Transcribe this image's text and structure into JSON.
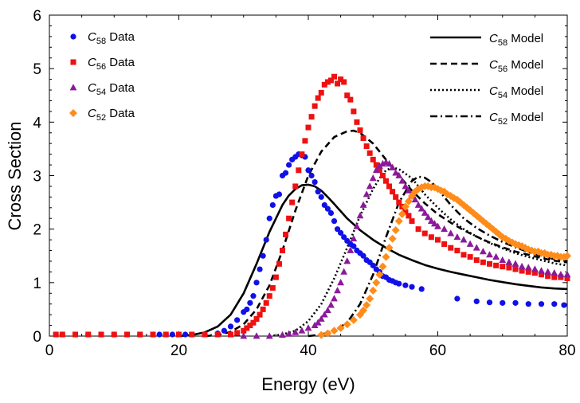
{
  "chart_data": {
    "type": "scatter",
    "title": "",
    "xlabel": "Energy (eV)",
    "ylabel": "Cross Section",
    "xlim": [
      0,
      80
    ],
    "ylim": [
      0,
      6
    ],
    "xticks": [
      0,
      20,
      40,
      60,
      80
    ],
    "yticks": [
      0,
      1,
      2,
      3,
      4,
      5,
      6
    ],
    "xtick_labels": [
      "0",
      "20",
      "40",
      "60",
      "80"
    ],
    "ytick_labels": [
      "0",
      "1",
      "2",
      "3",
      "4",
      "5",
      "6"
    ],
    "frame": true,
    "grid": false,
    "legend_data_position": "top-left",
    "legend_model_position": "top-right",
    "data_series": [
      {
        "name": "C58 Data",
        "label_base": "C",
        "label_sub": "58",
        "label_suffix": " Data",
        "marker": "circle",
        "color": "#1010e8",
        "x": [
          1,
          2,
          4,
          6,
          8,
          10,
          12,
          14,
          16,
          17,
          18,
          19,
          20,
          21,
          22,
          24,
          26,
          27,
          28,
          29,
          30,
          30.5,
          31,
          31.5,
          32,
          32.5,
          33,
          33.5,
          34,
          34.5,
          35,
          35.5,
          36,
          36.5,
          37,
          37.5,
          38,
          38.5,
          39,
          39.5,
          40,
          40.5,
          41,
          41.5,
          42,
          42.5,
          43,
          43.5,
          44,
          44.5,
          45,
          45.5,
          46,
          46.5,
          47,
          47.5,
          48,
          48.5,
          49,
          49.5,
          50,
          50.5,
          51,
          51.5,
          52,
          52.5,
          53,
          53.5,
          54,
          55,
          56,
          57.5,
          63,
          66,
          68,
          70,
          72,
          74,
          76,
          78,
          79.5
        ],
        "y": [
          0.03,
          0.03,
          0.03,
          0.03,
          0.03,
          0.03,
          0.03,
          0.03,
          0.03,
          0.03,
          0.03,
          0.03,
          0.03,
          0.03,
          0.03,
          0.03,
          0.05,
          0.1,
          0.18,
          0.3,
          0.45,
          0.5,
          0.62,
          0.75,
          1.0,
          1.25,
          1.5,
          1.8,
          2.2,
          2.45,
          2.62,
          2.65,
          3.0,
          3.05,
          3.2,
          3.3,
          3.35,
          3.4,
          3.38,
          3.35,
          3.1,
          3.0,
          2.88,
          2.7,
          2.6,
          2.45,
          2.38,
          2.3,
          2.15,
          2.0,
          1.93,
          1.85,
          1.78,
          1.72,
          1.68,
          1.6,
          1.55,
          1.5,
          1.42,
          1.38,
          1.32,
          1.25,
          1.2,
          1.12,
          1.1,
          1.05,
          1.03,
          1.0,
          0.98,
          0.95,
          0.92,
          0.88,
          0.7,
          0.65,
          0.63,
          0.62,
          0.62,
          0.6,
          0.6,
          0.6,
          0.58
        ]
      },
      {
        "name": "C56 Data",
        "label_base": "C",
        "label_sub": "56",
        "label_suffix": " Data",
        "marker": "square",
        "color": "#ee1111",
        "x": [
          1,
          2,
          4,
          6,
          8,
          10,
          12,
          14,
          16,
          18,
          20,
          22,
          24,
          26,
          28,
          29,
          30,
          30.5,
          31,
          31.5,
          32,
          32.5,
          33,
          33.5,
          34,
          34.5,
          35,
          35.5,
          36,
          36.5,
          37,
          37.5,
          38,
          38.5,
          39,
          39.5,
          40,
          40.5,
          41,
          41.5,
          42,
          42.5,
          43,
          43.5,
          44,
          44.5,
          45,
          45.5,
          46,
          46.5,
          47,
          47.5,
          48,
          48.5,
          49,
          49.5,
          50,
          50.5,
          51,
          51.5,
          52,
          52.5,
          53,
          53.5,
          54,
          54.5,
          55,
          55.5,
          56,
          57,
          58,
          59,
          60,
          61,
          62,
          63,
          64,
          65,
          66,
          67,
          68,
          69,
          70,
          71,
          72,
          73,
          74,
          75,
          76,
          77,
          78,
          79,
          80
        ],
        "y": [
          0.03,
          0.03,
          0.03,
          0.03,
          0.03,
          0.03,
          0.03,
          0.03,
          0.03,
          0.03,
          0.03,
          0.03,
          0.03,
          0.03,
          0.03,
          0.06,
          0.1,
          0.15,
          0.2,
          0.25,
          0.32,
          0.4,
          0.5,
          0.62,
          0.75,
          0.9,
          1.1,
          1.35,
          1.6,
          1.9,
          2.2,
          2.5,
          2.8,
          3.1,
          3.4,
          3.65,
          3.9,
          4.1,
          4.3,
          4.45,
          4.55,
          4.7,
          4.75,
          4.78,
          4.85,
          4.72,
          4.8,
          4.75,
          4.5,
          4.42,
          4.2,
          4.0,
          3.85,
          3.7,
          3.55,
          3.42,
          3.3,
          3.2,
          3.1,
          3.0,
          2.9,
          2.8,
          2.7,
          2.6,
          2.5,
          2.42,
          2.32,
          2.25,
          2.15,
          2.0,
          1.92,
          1.85,
          1.8,
          1.72,
          1.65,
          1.6,
          1.52,
          1.48,
          1.42,
          1.38,
          1.35,
          1.32,
          1.3,
          1.28,
          1.25,
          1.22,
          1.2,
          1.18,
          1.15,
          1.12,
          1.1,
          1.1,
          1.08
        ]
      },
      {
        "name": "C54 Data",
        "label_base": "C",
        "label_sub": "54",
        "label_suffix": " Data",
        "marker": "triangle",
        "color": "#8b1a99",
        "x": [
          30,
          32,
          34,
          36,
          37,
          38,
          39,
          40,
          41,
          41.5,
          42,
          42.5,
          43,
          43.5,
          44,
          44.5,
          45,
          45.5,
          46,
          46.5,
          47,
          47.5,
          48,
          48.5,
          49,
          49.5,
          50,
          50.5,
          51,
          51.5,
          52,
          52.5,
          53,
          53.5,
          54,
          54.5,
          55,
          55.5,
          56,
          56.5,
          57,
          57.5,
          58,
          58.5,
          59,
          59.5,
          60,
          61,
          62,
          63,
          64,
          65,
          66,
          67,
          68,
          69,
          70,
          71,
          72,
          73,
          74,
          75,
          76,
          77,
          78,
          79,
          80
        ],
        "y": [
          0.0,
          0.0,
          0.0,
          0.02,
          0.04,
          0.07,
          0.1,
          0.15,
          0.2,
          0.25,
          0.32,
          0.4,
          0.48,
          0.58,
          0.7,
          0.85,
          1.0,
          1.2,
          1.4,
          1.6,
          1.82,
          2.05,
          2.25,
          2.45,
          2.65,
          2.8,
          2.95,
          3.1,
          3.18,
          3.22,
          3.25,
          3.22,
          3.15,
          3.05,
          3.0,
          2.9,
          2.8,
          2.72,
          2.62,
          2.55,
          2.45,
          2.38,
          2.3,
          2.22,
          2.15,
          2.1,
          2.05,
          2.0,
          1.92,
          1.85,
          1.8,
          1.72,
          1.65,
          1.58,
          1.52,
          1.48,
          1.42,
          1.38,
          1.35,
          1.3,
          1.28,
          1.25,
          1.22,
          1.2,
          1.18,
          1.15,
          1.15
        ]
      },
      {
        "name": "C52 Data",
        "label_base": "C",
        "label_sub": "52",
        "label_suffix": " Data",
        "marker": "diamond",
        "color": "#ff8c1a",
        "x": [
          42,
          43,
          44,
          45,
          46,
          47,
          48,
          48.5,
          49,
          49.5,
          50,
          50.5,
          51,
          51.5,
          52,
          52.5,
          53,
          53.5,
          54,
          54.5,
          55,
          55.5,
          56,
          56.5,
          57,
          57.5,
          58,
          58.5,
          59,
          59.5,
          60,
          60.5,
          61,
          61.5,
          62,
          62.5,
          63,
          63.5,
          64,
          64.5,
          65,
          65.5,
          66,
          66.5,
          67,
          67.5,
          68,
          68.5,
          69,
          69.5,
          70,
          70.5,
          71,
          71.5,
          72,
          72.5,
          73,
          73.5,
          74,
          74.5,
          75,
          75.5,
          76,
          76.5,
          77,
          77.5,
          78,
          78.5,
          79,
          79.5,
          80
        ],
        "y": [
          0.02,
          0.05,
          0.1,
          0.15,
          0.22,
          0.3,
          0.4,
          0.48,
          0.58,
          0.7,
          0.85,
          1.0,
          1.15,
          1.3,
          1.48,
          1.65,
          1.82,
          1.98,
          2.15,
          2.28,
          2.42,
          2.52,
          2.62,
          2.7,
          2.75,
          2.78,
          2.8,
          2.8,
          2.78,
          2.78,
          2.75,
          2.72,
          2.7,
          2.65,
          2.62,
          2.58,
          2.55,
          2.5,
          2.45,
          2.4,
          2.35,
          2.3,
          2.25,
          2.2,
          2.15,
          2.1,
          2.05,
          2.0,
          1.95,
          1.9,
          1.85,
          1.82,
          1.78,
          1.75,
          1.72,
          1.7,
          1.68,
          1.65,
          1.62,
          1.6,
          1.58,
          1.58,
          1.55,
          1.55,
          1.52,
          1.52,
          1.5,
          1.5,
          1.48,
          1.48,
          1.5
        ]
      }
    ],
    "model_series": [
      {
        "name": "C58 Model",
        "label_base": "C",
        "label_sub": "58",
        "label_suffix": " Model",
        "style": "solid",
        "color": "#000000",
        "x": [
          20,
          22,
          24,
          26,
          28,
          30,
          32,
          34,
          36,
          37,
          38,
          39,
          40,
          41,
          42,
          43,
          44,
          46,
          48,
          50,
          52,
          54,
          56,
          58,
          60,
          62,
          64,
          66,
          68,
          70,
          72,
          74,
          76,
          78,
          80
        ],
        "y": [
          0.0,
          0.02,
          0.07,
          0.18,
          0.4,
          0.8,
          1.35,
          1.95,
          2.45,
          2.63,
          2.75,
          2.82,
          2.83,
          2.8,
          2.72,
          2.6,
          2.47,
          2.2,
          1.98,
          1.8,
          1.65,
          1.52,
          1.42,
          1.33,
          1.26,
          1.2,
          1.15,
          1.1,
          1.05,
          1.01,
          0.97,
          0.94,
          0.91,
          0.89,
          0.88
        ]
      },
      {
        "name": "C56 Model",
        "label_base": "C",
        "label_sub": "56",
        "label_suffix": " Model",
        "style": "dashed",
        "color": "#000000",
        "x": [
          24,
          26,
          28,
          30,
          32,
          34,
          36,
          38,
          40,
          42,
          44,
          46,
          47,
          48,
          50,
          52,
          54,
          56,
          58,
          60,
          62,
          64,
          66,
          68,
          70,
          72,
          74,
          76,
          78,
          80
        ],
        "y": [
          0.0,
          0.02,
          0.08,
          0.22,
          0.5,
          0.95,
          1.6,
          2.35,
          3.0,
          3.45,
          3.72,
          3.83,
          3.84,
          3.8,
          3.6,
          3.3,
          3.0,
          2.72,
          2.48,
          2.28,
          2.12,
          1.98,
          1.86,
          1.75,
          1.66,
          1.58,
          1.52,
          1.46,
          1.41,
          1.38
        ]
      },
      {
        "name": "C54 Model",
        "label_base": "C",
        "label_sub": "54",
        "label_suffix": " Model",
        "style": "dotted",
        "color": "#000000",
        "x": [
          34,
          36,
          38,
          40,
          42,
          44,
          46,
          48,
          50,
          51,
          52,
          53,
          54,
          56,
          58,
          60,
          62,
          64,
          66,
          68,
          70,
          72,
          74,
          76,
          78,
          80
        ],
        "y": [
          0.0,
          0.03,
          0.1,
          0.28,
          0.6,
          1.08,
          1.65,
          2.25,
          2.75,
          2.95,
          3.1,
          3.15,
          3.12,
          2.95,
          2.65,
          2.4,
          2.18,
          2.0,
          1.86,
          1.74,
          1.64,
          1.55,
          1.48,
          1.42,
          1.36,
          1.32
        ]
      },
      {
        "name": "C52 Model",
        "label_base": "C",
        "label_sub": "52",
        "label_suffix": " Model",
        "style": "dashdot",
        "color": "#000000",
        "x": [
          40,
          42,
          44,
          46,
          48,
          50,
          52,
          54,
          56,
          57,
          58,
          59,
          60,
          62,
          64,
          66,
          68,
          70,
          72,
          74,
          76,
          78,
          80
        ],
        "y": [
          0.0,
          0.03,
          0.1,
          0.25,
          0.6,
          1.15,
          1.85,
          2.5,
          2.9,
          2.98,
          2.96,
          2.88,
          2.75,
          2.45,
          2.2,
          2.02,
          1.88,
          1.76,
          1.66,
          1.57,
          1.5,
          1.44,
          1.4
        ]
      }
    ]
  }
}
